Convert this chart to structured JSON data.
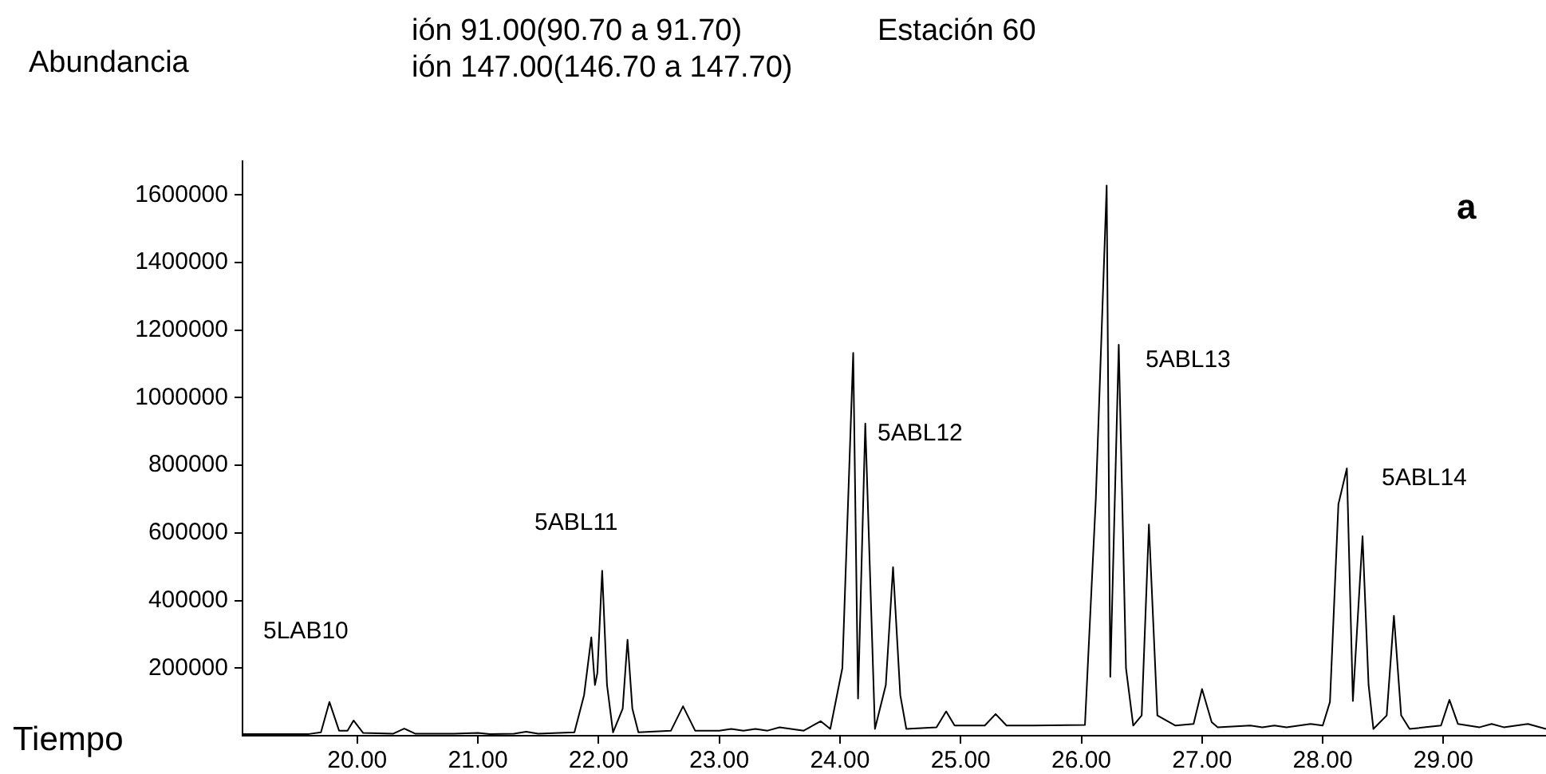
{
  "chart_data": {
    "type": "line",
    "title": "ión 91.00(90.70 a 91.70)\nión 147.00(146.70 a 147.70)",
    "subtitle": "Estación 60",
    "xlabel": "Tiempo",
    "ylabel": "Abundancia",
    "xlim": [
      19.05,
      29.85
    ],
    "ylim": [
      0,
      1700000
    ],
    "xticks": [
      {
        "value": 20,
        "label": "20.00"
      },
      {
        "value": 21,
        "label": "21.00"
      },
      {
        "value": 22,
        "label": "22.00"
      },
      {
        "value": 23,
        "label": "23.00"
      },
      {
        "value": 24,
        "label": "24.00"
      },
      {
        "value": 25,
        "label": "25.00"
      },
      {
        "value": 26,
        "label": "26.00"
      },
      {
        "value": 27,
        "label": "27.00"
      },
      {
        "value": 28,
        "label": "28.00"
      },
      {
        "value": 29,
        "label": "29.00"
      }
    ],
    "yticks": [
      200000,
      400000,
      600000,
      800000,
      1000000,
      1200000,
      1400000,
      1600000
    ],
    "grid": false,
    "legend": false,
    "marker": "none",
    "line_style": "solid",
    "series": [
      {
        "color": "#000000",
        "x": [
          19.05,
          19.3,
          19.6,
          19.7,
          19.77,
          19.85,
          19.92,
          19.97,
          20.05,
          20.3,
          20.39,
          20.48,
          20.8,
          21.0,
          21.1,
          21.3,
          21.4,
          21.5,
          21.8,
          21.88,
          21.94,
          21.97,
          21.99,
          22.03,
          22.07,
          22.12,
          22.2,
          22.24,
          22.28,
          22.33,
          22.6,
          22.7,
          22.8,
          23.0,
          23.1,
          23.2,
          23.3,
          23.4,
          23.5,
          23.7,
          23.84,
          23.92,
          24.02,
          24.11,
          24.15,
          24.21,
          24.29,
          24.38,
          24.44,
          24.5,
          24.55,
          24.8,
          24.88,
          24.95,
          25.2,
          25.29,
          25.38,
          25.6,
          26.03,
          26.12,
          26.21,
          26.24,
          26.31,
          26.37,
          26.43,
          26.5,
          26.56,
          26.63,
          26.78,
          26.93,
          27.0,
          27.08,
          27.13,
          27.4,
          27.5,
          27.6,
          27.7,
          27.9,
          28.0,
          28.06,
          28.13,
          28.2,
          28.25,
          28.33,
          28.38,
          28.42,
          28.53,
          28.59,
          28.65,
          28.72,
          28.98,
          29.05,
          29.12,
          29.3,
          29.4,
          29.5,
          29.7,
          29.85
        ],
        "values": [
          5000,
          5000,
          5000,
          10000,
          100000,
          15000,
          15000,
          45000,
          8000,
          6000,
          21000,
          6000,
          6000,
          8000,
          5000,
          6000,
          12000,
          6000,
          10000,
          120000,
          291000,
          150000,
          185000,
          488000,
          150000,
          10000,
          80000,
          284000,
          80000,
          10000,
          15000,
          87000,
          15000,
          15000,
          20000,
          15000,
          20000,
          15000,
          25000,
          15000,
          43000,
          20000,
          200000,
          1133000,
          110000,
          924000,
          20000,
          150000,
          499000,
          120000,
          20000,
          25000,
          72000,
          30000,
          30000,
          64000,
          30000,
          30000,
          32000,
          700000,
          1628000,
          174000,
          1157000,
          200000,
          30000,
          60000,
          625000,
          60000,
          30000,
          35000,
          138000,
          40000,
          25000,
          30000,
          25000,
          30000,
          25000,
          35000,
          30000,
          100000,
          685000,
          791000,
          103000,
          590000,
          150000,
          20000,
          60000,
          355000,
          60000,
          20000,
          30000,
          106000,
          35000,
          25000,
          35000,
          25000,
          35000,
          20000
        ]
      }
    ],
    "annotations": [
      "5LAB10",
      "5ABL11",
      "5ABL12",
      "5ABL13",
      "5ABL14",
      "a"
    ]
  }
}
